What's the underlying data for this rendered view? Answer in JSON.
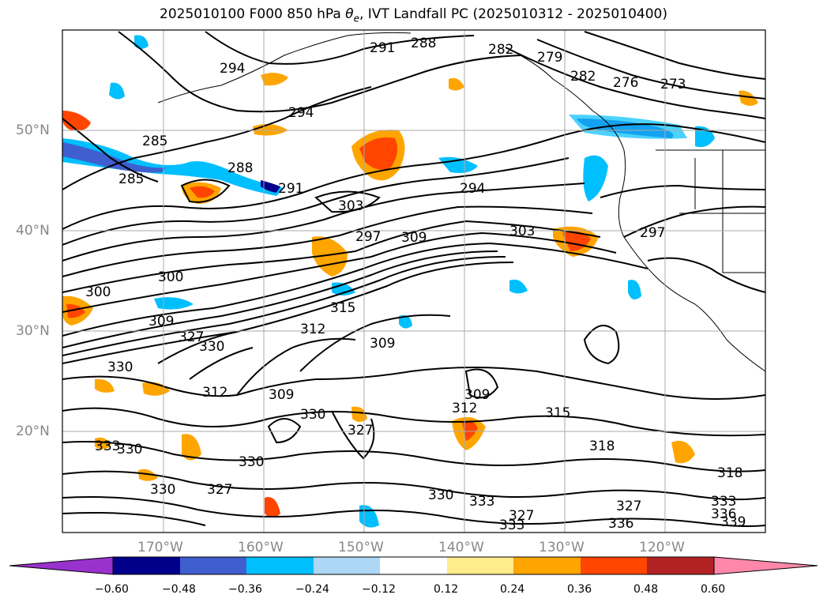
{
  "title_parts": {
    "prefix": "2025010100 F000 850 hPa ",
    "theta": "θ",
    "sub": "e",
    "suffix": ", IVT Landfall PC (2025010312 - 2025010400)"
  },
  "map": {
    "lon_range": [
      -180,
      -110
    ],
    "lat_range": [
      10,
      60
    ],
    "lon_ticks": [
      "170°W",
      "160°W",
      "150°W",
      "140°W",
      "130°W",
      "120°W"
    ],
    "lat_ticks": [
      "50°N",
      "40°N",
      "30°N",
      "20°N"
    ],
    "grid": true
  },
  "contour_labels": [
    "291",
    "288",
    "282",
    "279",
    "282",
    "276",
    "273",
    "294",
    "294",
    "285",
    "288",
    "285",
    "291",
    "303",
    "294",
    "297",
    "303",
    "297",
    "309",
    "300",
    "300",
    "309",
    "315",
    "312",
    "330",
    "327",
    "330",
    "312",
    "309",
    "309",
    "315",
    "312",
    "309",
    "330",
    "327",
    "333",
    "330",
    "330",
    "327",
    "330",
    "333",
    "327",
    "333",
    "318",
    "318",
    "333",
    "336",
    "339",
    "330",
    "336",
    "327"
  ],
  "colorbar": {
    "ticks": [
      "−0.60",
      "−0.48",
      "−0.36",
      "−0.24",
      "−0.12",
      "0.12",
      "0.24",
      "0.36",
      "0.48",
      "0.60"
    ],
    "colors": [
      "#9932cc",
      "#00008b",
      "#3f5fcf",
      "#00bfff",
      "#add8f5",
      "#ffffff",
      "#ffec8b",
      "#ffa500",
      "#ff4500",
      "#b22222",
      "#ff88aa"
    ]
  }
}
